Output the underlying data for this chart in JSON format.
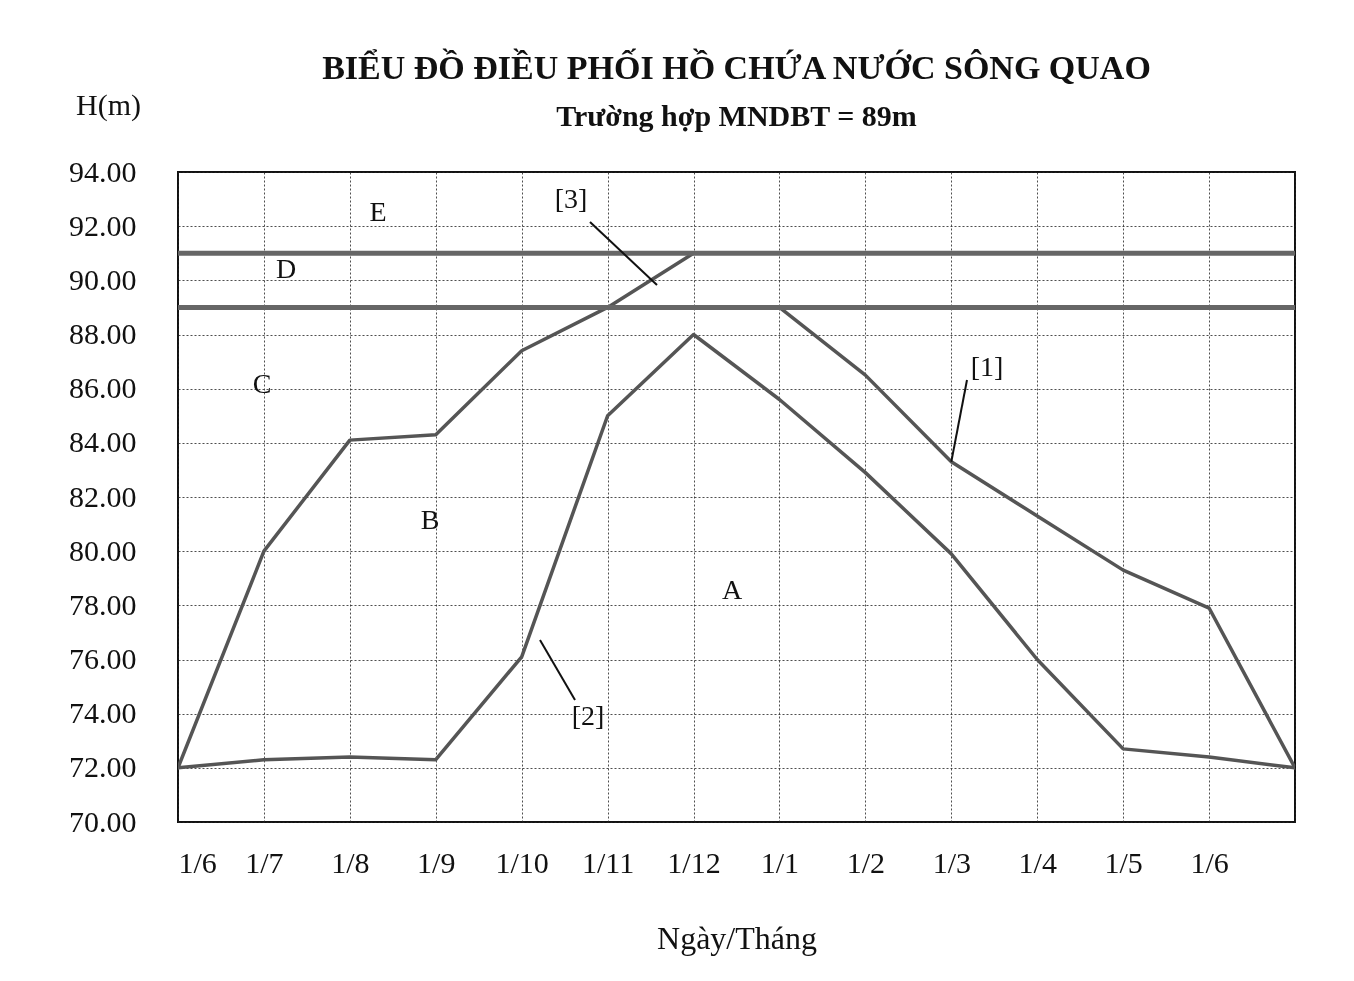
{
  "chart_data": {
    "type": "line",
    "title": "BIỂU ĐỒ ĐIỀU PHỐI HỒ CHỨA NƯỚC SÔNG QUAO",
    "subtitle": "Trường hợp MNDBT = 89m",
    "xlabel": "Ngày/Tháng",
    "ylabel": "H(m)",
    "categories": [
      "1/6",
      "1/7",
      "1/8",
      "1/9",
      "1/10",
      "1/11",
      "1/12",
      "1/1",
      "1/2",
      "1/3",
      "1/4",
      "1/5",
      "1/6",
      null
    ],
    "ylim": [
      70,
      94
    ],
    "yticks": [
      {
        "value": 70,
        "label": "70.00"
      },
      {
        "value": 72,
        "label": "72.00"
      },
      {
        "value": 74,
        "label": "74.00"
      },
      {
        "value": 76,
        "label": "76.00"
      },
      {
        "value": 78,
        "label": "78.00"
      },
      {
        "value": 80,
        "label": "80.00"
      },
      {
        "value": 82,
        "label": "82.00"
      },
      {
        "value": 84,
        "label": "84.00"
      },
      {
        "value": 86,
        "label": "86.00"
      },
      {
        "value": 88,
        "label": "88.00"
      },
      {
        "value": 90,
        "label": "90.00"
      },
      {
        "value": 92,
        "label": "92.00"
      },
      {
        "value": 94,
        "label": "94.00"
      }
    ],
    "grid": true,
    "line_style": "solid",
    "series": [
      {
        "color": "#555555",
        "values": [
          72,
          80,
          84.1,
          84.3,
          87.4,
          89,
          91,
          null,
          null,
          null,
          null,
          null,
          null,
          null
        ]
      },
      {
        "color": "#555555",
        "values": [
          72,
          72.3,
          72.4,
          72.3,
          76.1,
          85,
          88,
          85.6,
          82.9,
          79.9,
          76,
          72.7,
          72.4,
          72
        ]
      },
      {
        "color": "#555555",
        "values": [
          null,
          null,
          null,
          null,
          null,
          null,
          null,
          89,
          86.5,
          83.3,
          81.3,
          79.3,
          77.9,
          72
        ]
      }
    ],
    "ref_lines": [
      {
        "axis": "y",
        "value": 91,
        "color": "#666666"
      },
      {
        "axis": "y",
        "value": 89,
        "color": "#666666"
      }
    ],
    "annotations": [
      "A",
      "B",
      "C",
      "D",
      "E",
      {
        "text": "[1]",
        "x": "1/3",
        "y": 83.3
      },
      "[2]",
      "[3]"
    ]
  }
}
